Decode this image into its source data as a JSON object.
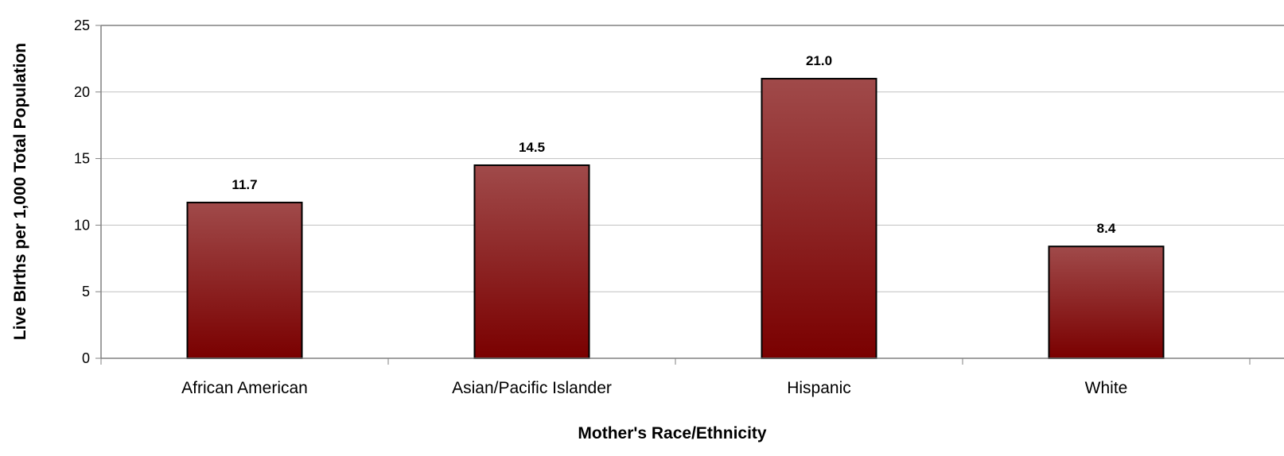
{
  "chart_data": {
    "type": "bar",
    "title": "",
    "xlabel": "Mother's Race/Ethnicity",
    "ylabel": "Live BIrths per 1,000 Total Population",
    "categories": [
      "African American",
      "Asian/Pacific Islander",
      "Hispanic",
      "White"
    ],
    "values": [
      11.7,
      14.5,
      21.0,
      8.4
    ],
    "value_labels": [
      "11.7",
      "14.5",
      "21.0",
      "8.4"
    ],
    "ylim": [
      0,
      25
    ],
    "yticks": [
      "0",
      "5",
      "10",
      "15",
      "20",
      "25"
    ],
    "grid": true,
    "legend": "none",
    "colors": {
      "bar_top": "#a04a4a",
      "bar_bottom": "#7a0000",
      "bar_outline": "#000000",
      "gridline": "#c0c0c0",
      "axis": "#808080"
    }
  }
}
